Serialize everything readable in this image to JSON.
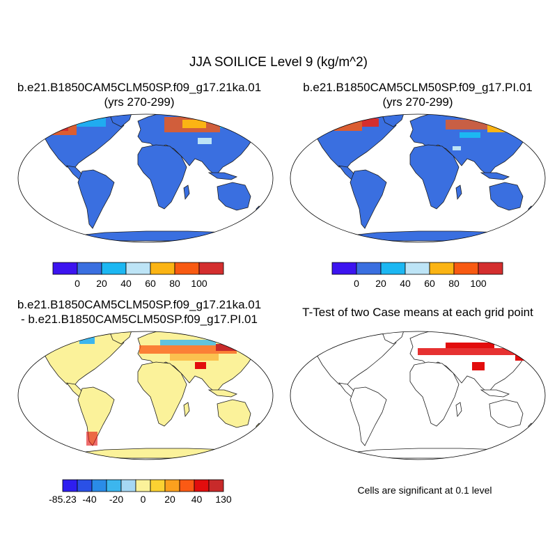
{
  "title": "JJA SOILICE Level 9 (kg/m^2)",
  "panels": [
    {
      "line1": "b.e21.B1850CAM5CLM50SP.f09_g17.21ka.01",
      "line2": "(yrs 270-299)"
    },
    {
      "line1": "b.e21.B1850CAM5CLM50SP.f09_g17.PI.01",
      "line2": "(yrs 270-299)"
    },
    {
      "line1": "b.e21.B1850CAM5CLM50SP.f09_g17.21ka.01",
      "line2": "- b.e21.B1850CAM5CLM50SP.f09_g17.PI.01"
    },
    {
      "line1": "T-Test of two Case means at each grid point"
    }
  ],
  "colorbars": {
    "top": {
      "colors": [
        "#3c14f0",
        "#3a6fe0",
        "#1cb7f2",
        "#bde4f6",
        "#fbb414",
        "#f85a12",
        "#d42e2e"
      ],
      "labels": [
        "0",
        "20",
        "40",
        "60",
        "80",
        "100"
      ]
    },
    "diff": {
      "colors": [
        "#2e1ef0",
        "#2a50e6",
        "#2a8ce8",
        "#3cb6ee",
        "#a6d8f4",
        "#fbf29a",
        "#fbd232",
        "#fba01e",
        "#fb5a14",
        "#e20d0d",
        "#c82a2a"
      ],
      "labels": [
        "-85.23",
        "-40",
        "-20",
        "0",
        "20",
        "40",
        "130"
      ]
    }
  },
  "note": "Cells are significant at 0.1 level"
}
